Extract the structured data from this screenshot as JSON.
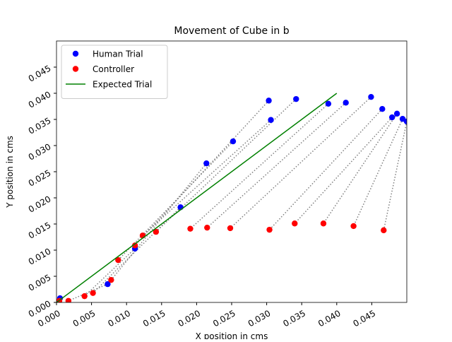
{
  "chart_data": {
    "type": "scatter",
    "title": "Movement of Cube in b",
    "x_label": "X position in cms",
    "y_label": "Y position in cms",
    "xlim": [
      0,
      0.05
    ],
    "ylim": [
      0,
      0.05
    ],
    "xticks": [
      {
        "value": 0,
        "label": "0.000"
      },
      {
        "value": 0.005,
        "label": "0.005"
      },
      {
        "value": 0.01,
        "label": "0.010"
      },
      {
        "value": 0.015,
        "label": "0.015"
      },
      {
        "value": 0.02,
        "label": "0.020"
      },
      {
        "value": 0.025,
        "label": "0.025"
      },
      {
        "value": 0.03,
        "label": "0.030"
      },
      {
        "value": 0.035,
        "label": "0.035"
      },
      {
        "value": 0.04,
        "label": "0.040"
      },
      {
        "value": 0.045,
        "label": "0.045"
      }
    ],
    "yticks": [
      {
        "value": 0,
        "label": "0.000"
      },
      {
        "value": 0.005,
        "label": "0.005"
      },
      {
        "value": 0.01,
        "label": "0.010"
      },
      {
        "value": 0.015,
        "label": "0.015"
      },
      {
        "value": 0.02,
        "label": "0.020"
      },
      {
        "value": 0.025,
        "label": "0.025"
      },
      {
        "value": 0.03,
        "label": "0.030"
      },
      {
        "value": 0.035,
        "label": "0.035"
      },
      {
        "value": 0.04,
        "label": "0.040"
      },
      {
        "value": 0.045,
        "label": "0.045"
      }
    ],
    "legend": "upper left",
    "series": [
      {
        "name": "Human Trial",
        "color": "#0000ff",
        "kind": "scatter",
        "x": [
          0.0005,
          0.0073,
          0.0112,
          0.0177,
          0.0214,
          0.0252,
          0.0303,
          0.0306,
          0.0342,
          0.0388,
          0.0413,
          0.0449,
          0.0465,
          0.0479,
          0.0486,
          0.0494,
          0.05
        ],
        "values": [
          0.0008,
          0.0035,
          0.0103,
          0.0182,
          0.0266,
          0.0308,
          0.0386,
          0.0349,
          0.0389,
          0.038,
          0.0382,
          0.0393,
          0.037,
          0.0354,
          0.0361,
          0.0351,
          0.0346
        ]
      },
      {
        "name": "Controller",
        "color": "#ff0000",
        "kind": "scatter",
        "x": [
          0.0004,
          0.0017,
          0.004,
          0.0052,
          0.0078,
          0.0088,
          0.0112,
          0.0123,
          0.0142,
          0.0191,
          0.0215,
          0.0248,
          0.0304,
          0.034,
          0.0381,
          0.0424,
          0.0467
        ],
        "values": [
          0.0003,
          0.0003,
          0.0012,
          0.0018,
          0.0043,
          0.0081,
          0.0109,
          0.0128,
          0.0135,
          0.0141,
          0.0143,
          0.0142,
          0.0139,
          0.0151,
          0.0151,
          0.0146,
          0.0138
        ]
      },
      {
        "name": "Expected Trial",
        "color": "#008000",
        "kind": "line",
        "x": [
          0,
          0.04
        ],
        "values": [
          0,
          0.04
        ]
      }
    ]
  }
}
